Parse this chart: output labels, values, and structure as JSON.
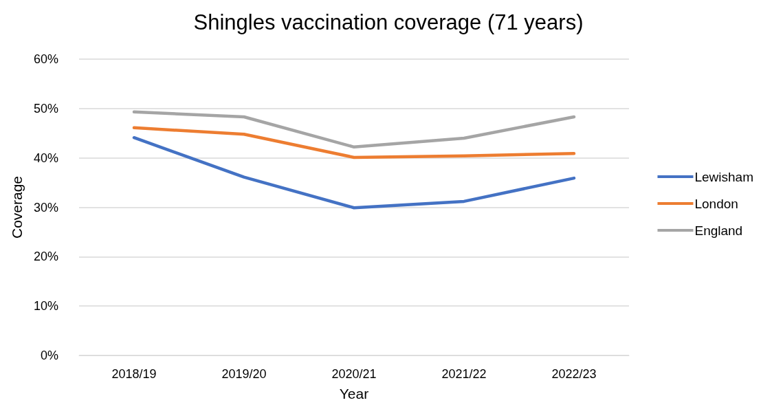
{
  "chart_data": {
    "type": "line",
    "title": "Shingles vaccination coverage (71 years)",
    "xlabel": "Year",
    "ylabel": "Coverage",
    "categories": [
      "2018/19",
      "2019/20",
      "2020/21",
      "2021/22",
      "2022/23"
    ],
    "series": [
      {
        "name": "Lewisham",
        "color": "#4472c4",
        "values": [
          44.1,
          36.1,
          29.9,
          31.2,
          35.9
        ]
      },
      {
        "name": "London",
        "color": "#ed7d31",
        "values": [
          46.1,
          44.8,
          40.1,
          40.4,
          40.9
        ]
      },
      {
        "name": "England",
        "color": "#a5a5a5",
        "values": [
          49.3,
          48.3,
          42.2,
          44.0,
          48.3
        ]
      }
    ],
    "ylim": [
      0,
      60
    ],
    "yticks": [
      {
        "value": 0,
        "label": "0%"
      },
      {
        "value": 10,
        "label": "10%"
      },
      {
        "value": 20,
        "label": "20%"
      },
      {
        "value": 30,
        "label": "30%"
      },
      {
        "value": 40,
        "label": "40%"
      },
      {
        "value": 50,
        "label": "50%"
      },
      {
        "value": 60,
        "label": "60%"
      }
    ],
    "grid": "y",
    "legend": "right",
    "marker": "none",
    "line_style": "solid"
  }
}
